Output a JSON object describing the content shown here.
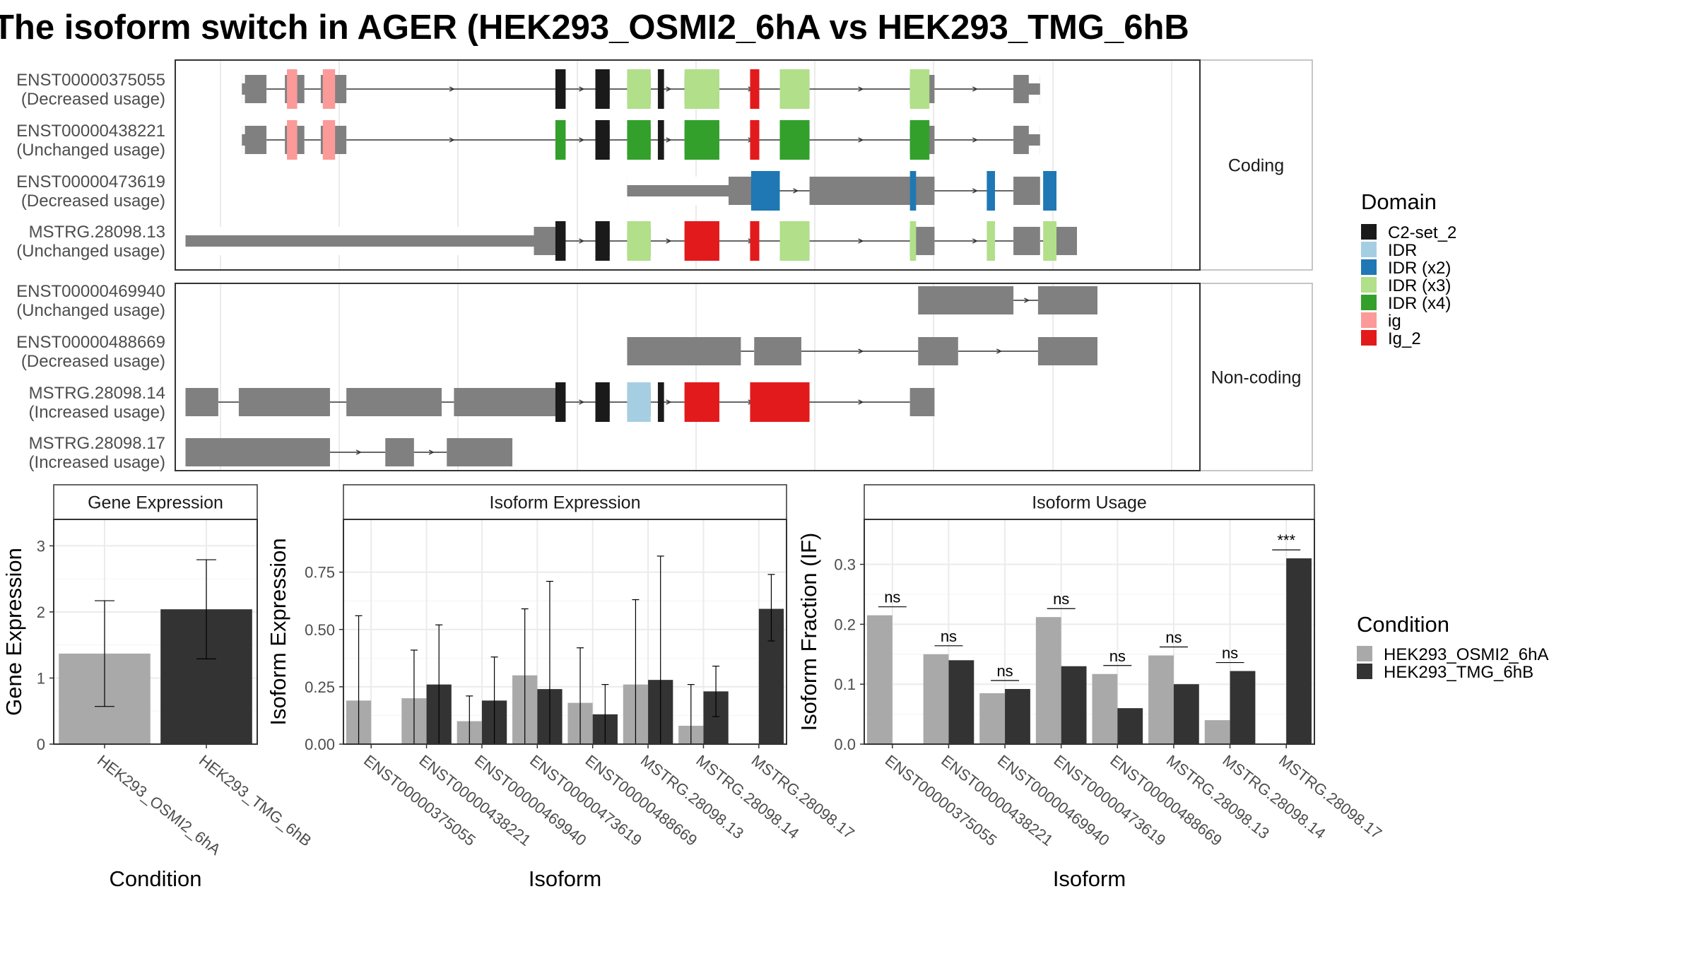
{
  "title": "The isoform switch in AGER (HEK293_OSMI2_6hA vs HEK293_TMG_6hB",
  "domain_legend": {
    "title": "Domain",
    "items": [
      {
        "label": "C2-set_2",
        "color": "#1a1a1a"
      },
      {
        "label": "IDR",
        "color": "#a6cee3"
      },
      {
        "label": "IDR (x2)",
        "color": "#1f78b4"
      },
      {
        "label": "IDR (x3)",
        "color": "#b2df8a"
      },
      {
        "label": "IDR (x4)",
        "color": "#33a02c"
      },
      {
        "label": "ig",
        "color": "#fb9a99"
      },
      {
        "label": "Ig_2",
        "color": "#e31a1c"
      }
    ]
  },
  "condition_legend": {
    "title": "Condition",
    "items": [
      {
        "label": "HEK293_OSMI2_6hA",
        "color": "#a9a9a9"
      },
      {
        "label": "HEK293_TMG_6hB",
        "color": "#333333"
      }
    ]
  },
  "gene_models": {
    "genomic_range": [
      0,
      100
    ],
    "groups": [
      {
        "strip": "Coding",
        "transcripts": [
          {
            "id": "ENST00000375055",
            "usage": "(Decreased usage)",
            "exons": [
              [
                6.5,
                8.9
              ],
              [
                10.7,
                12.6
              ],
              [
                14.2,
                16.7
              ],
              [
                37.1,
                38.1
              ],
              [
                41.0,
                42.4
              ],
              [
                44.1,
                46.4
              ],
              [
                49.7,
                53.1
              ],
              [
                59.0,
                61.9
              ],
              [
                71.7,
                74.1
              ],
              [
                81.8,
                84.4
              ]
            ],
            "utr": [
              [
                6.5,
                6.8
              ],
              [
                83.3,
                84.4
              ]
            ],
            "domains": [
              [
                10.9,
                11.9,
                "#fb9a99"
              ],
              [
                14.4,
                15.6,
                "#fb9a99"
              ],
              [
                37.1,
                38.1,
                "#1a1a1a"
              ],
              [
                41.0,
                42.4,
                "#1a1a1a"
              ],
              [
                44.1,
                46.4,
                "#b2df8a"
              ],
              [
                49.7,
                53.1,
                "#b2df8a"
              ],
              [
                59.0,
                61.9,
                "#b2df8a"
              ],
              [
                71.7,
                73.6,
                "#b2df8a"
              ],
              [
                47.1,
                47.7,
                "#1a1a1a"
              ],
              [
                56.1,
                57.0,
                "#e31a1c"
              ]
            ]
          },
          {
            "id": "ENST00000438221",
            "usage": "(Unchanged usage)",
            "exons": [
              [
                6.5,
                8.9
              ],
              [
                10.7,
                12.6
              ],
              [
                14.2,
                16.7
              ],
              [
                37.1,
                38.1
              ],
              [
                41.0,
                42.4
              ],
              [
                44.1,
                46.4
              ],
              [
                49.7,
                53.1
              ],
              [
                59.0,
                61.9
              ],
              [
                71.7,
                74.1
              ],
              [
                81.8,
                84.4
              ]
            ],
            "utr": [
              [
                6.5,
                6.8
              ],
              [
                83.3,
                84.4
              ]
            ],
            "domains": [
              [
                10.9,
                11.9,
                "#fb9a99"
              ],
              [
                14.4,
                15.6,
                "#fb9a99"
              ],
              [
                37.1,
                38.1,
                "#33a02c"
              ],
              [
                41.0,
                42.4,
                "#1a1a1a"
              ],
              [
                44.1,
                46.4,
                "#33a02c"
              ],
              [
                49.7,
                53.1,
                "#33a02c"
              ],
              [
                59.0,
                61.9,
                "#33a02c"
              ],
              [
                71.7,
                73.6,
                "#33a02c"
              ],
              [
                47.1,
                47.7,
                "#1a1a1a"
              ],
              [
                56.1,
                57.0,
                "#e31a1c"
              ]
            ]
          },
          {
            "id": "ENST00000473619",
            "usage": "(Decreased usage)",
            "exons": [
              [
                44.1,
                59.0
              ],
              [
                61.9,
                74.1
              ],
              [
                81.8,
                84.4
              ]
            ],
            "utr": [
              [
                44.1,
                54.0
              ]
            ],
            "domains": [
              [
                56.2,
                59.0,
                "#1f78b4"
              ],
              [
                71.7,
                72.3,
                "#1f78b4"
              ],
              [
                79.2,
                80.0,
                "#1f78b4"
              ],
              [
                84.7,
                86.0,
                "#1f78b4"
              ]
            ]
          },
          {
            "id": "MSTRG.28098.13",
            "usage": "(Unchanged usage)",
            "exons": [
              [
                1.0,
                38.1
              ],
              [
                41.0,
                42.4
              ],
              [
                44.1,
                46.4
              ],
              [
                49.7,
                53.1
              ],
              [
                59.0,
                61.9
              ],
              [
                71.7,
                74.1
              ],
              [
                81.8,
                84.4
              ],
              [
                85.0,
                88.0
              ]
            ],
            "utr": [
              [
                1.0,
                35.0
              ]
            ],
            "domains": [
              [
                37.1,
                38.1,
                "#1a1a1a"
              ],
              [
                41.0,
                42.4,
                "#1a1a1a"
              ],
              [
                44.1,
                46.4,
                "#b2df8a"
              ],
              [
                49.7,
                53.1,
                "#e31a1c"
              ],
              [
                56.1,
                57.0,
                "#e31a1c"
              ],
              [
                59.0,
                61.9,
                "#b2df8a"
              ],
              [
                71.7,
                72.3,
                "#b2df8a"
              ],
              [
                79.2,
                80.0,
                "#b2df8a"
              ],
              [
                84.7,
                86.0,
                "#b2df8a"
              ]
            ]
          }
        ]
      },
      {
        "strip": "Non-coding",
        "transcripts": [
          {
            "id": "ENST00000469940",
            "usage": "(Unchanged usage)",
            "exons": [
              [
                72.5,
                81.8
              ],
              [
                84.2,
                90.0
              ]
            ],
            "utr": [],
            "domains": []
          },
          {
            "id": "ENST00000488669",
            "usage": "(Decreased usage)",
            "exons": [
              [
                44.1,
                55.2
              ],
              [
                56.5,
                61.1
              ],
              [
                72.5,
                76.4
              ],
              [
                84.2,
                90.0
              ]
            ],
            "utr": [],
            "domains": []
          },
          {
            "id": "MSTRG.28098.14",
            "usage": "(Increased usage)",
            "exons": [
              [
                1.0,
                4.2
              ],
              [
                6.2,
                15.1
              ],
              [
                16.7,
                26.0
              ],
              [
                27.2,
                38.1
              ],
              [
                41.0,
                42.4
              ],
              [
                44.1,
                46.4
              ],
              [
                49.7,
                53.1
              ],
              [
                59.0,
                61.9
              ],
              [
                71.7,
                74.1
              ]
            ],
            "utr": [],
            "domains": [
              [
                37.1,
                38.1,
                "#1a1a1a"
              ],
              [
                41.0,
                42.4,
                "#1a1a1a"
              ],
              [
                44.1,
                46.4,
                "#a6cee3"
              ],
              [
                49.7,
                53.1,
                "#e31a1c"
              ],
              [
                56.1,
                61.9,
                "#e31a1c"
              ],
              [
                47.1,
                47.7,
                "#1a1a1a"
              ]
            ]
          },
          {
            "id": "MSTRG.28098.17",
            "usage": "(Increased usage)",
            "exons": [
              [
                1.0,
                15.1
              ],
              [
                20.5,
                23.3
              ],
              [
                26.5,
                32.9
              ]
            ],
            "utr": [],
            "domains": []
          }
        ]
      }
    ]
  },
  "chart_data": [
    {
      "type": "bar",
      "title": "Gene Expression",
      "xlabel": "Condition",
      "ylabel": "Gene Expression",
      "ylim": [
        0,
        3.4
      ],
      "yticks": [
        0,
        1,
        2,
        3
      ],
      "categories": [
        "HEK293_OSMI2_6hA",
        "HEK293_TMG_6hB"
      ],
      "values": [
        1.37,
        2.04
      ],
      "error_low": [
        0.57,
        1.29
      ],
      "error_high": [
        2.17,
        2.79
      ]
    },
    {
      "type": "bar",
      "title": "Isoform Expression",
      "xlabel": "Isoform",
      "ylabel": "Isoform Expression",
      "ylim": [
        0,
        0.98
      ],
      "yticks": [
        0.0,
        0.25,
        0.5,
        0.75
      ],
      "ytick_labels": [
        "0.00",
        "0.25",
        "0.50",
        "0.75"
      ],
      "categories": [
        "ENST00000375055",
        "ENST00000438221",
        "ENST00000469940",
        "ENST00000473619",
        "ENST00000488669",
        "MSTRG.28098.13",
        "MSTRG.28098.14",
        "MSTRG.28098.17"
      ],
      "series": [
        {
          "name": "HEK293_OSMI2_6hA",
          "values": [
            0.19,
            0.2,
            0.1,
            0.3,
            0.18,
            0.26,
            0.08,
            0.0
          ],
          "error_low": [
            0.0,
            0.0,
            0.0,
            0.0,
            0.0,
            0.0,
            0.0,
            0.0
          ],
          "error_high": [
            0.56,
            0.41,
            0.21,
            0.59,
            0.42,
            0.63,
            0.26,
            0.0
          ]
        },
        {
          "name": "HEK293_TMG_6hB",
          "values": [
            0.0,
            0.26,
            0.19,
            0.24,
            0.13,
            0.28,
            0.23,
            0.59
          ],
          "error_low": [
            0.0,
            0.0,
            0.0,
            0.0,
            0.0,
            0.0,
            0.12,
            0.45
          ],
          "error_high": [
            0.0,
            0.52,
            0.38,
            0.71,
            0.26,
            0.82,
            0.34,
            0.74
          ]
        }
      ]
    },
    {
      "type": "bar",
      "title": "Isoform Usage",
      "xlabel": "Isoform",
      "ylabel": "Isoform Fraction (IF)",
      "ylim": [
        0,
        0.375
      ],
      "yticks": [
        0.0,
        0.1,
        0.2,
        0.3
      ],
      "ytick_labels": [
        "0.0",
        "0.1",
        "0.2",
        "0.3"
      ],
      "categories": [
        "ENST00000375055",
        "ENST00000438221",
        "ENST00000469940",
        "ENST00000473619",
        "ENST00000488669",
        "MSTRG.28098.13",
        "MSTRG.28098.14",
        "MSTRG.28098.17"
      ],
      "series": [
        {
          "name": "HEK293_OSMI2_6hA",
          "values": [
            0.215,
            0.15,
            0.085,
            0.212,
            0.117,
            0.148,
            0.04,
            0.0
          ]
        },
        {
          "name": "HEK293_TMG_6hB",
          "values": [
            0.0,
            0.14,
            0.092,
            0.13,
            0.06,
            0.1,
            0.122,
            0.31
          ]
        }
      ],
      "significance": [
        "ns",
        "ns",
        "ns",
        "ns",
        "ns",
        "ns",
        "ns",
        "***"
      ]
    }
  ]
}
